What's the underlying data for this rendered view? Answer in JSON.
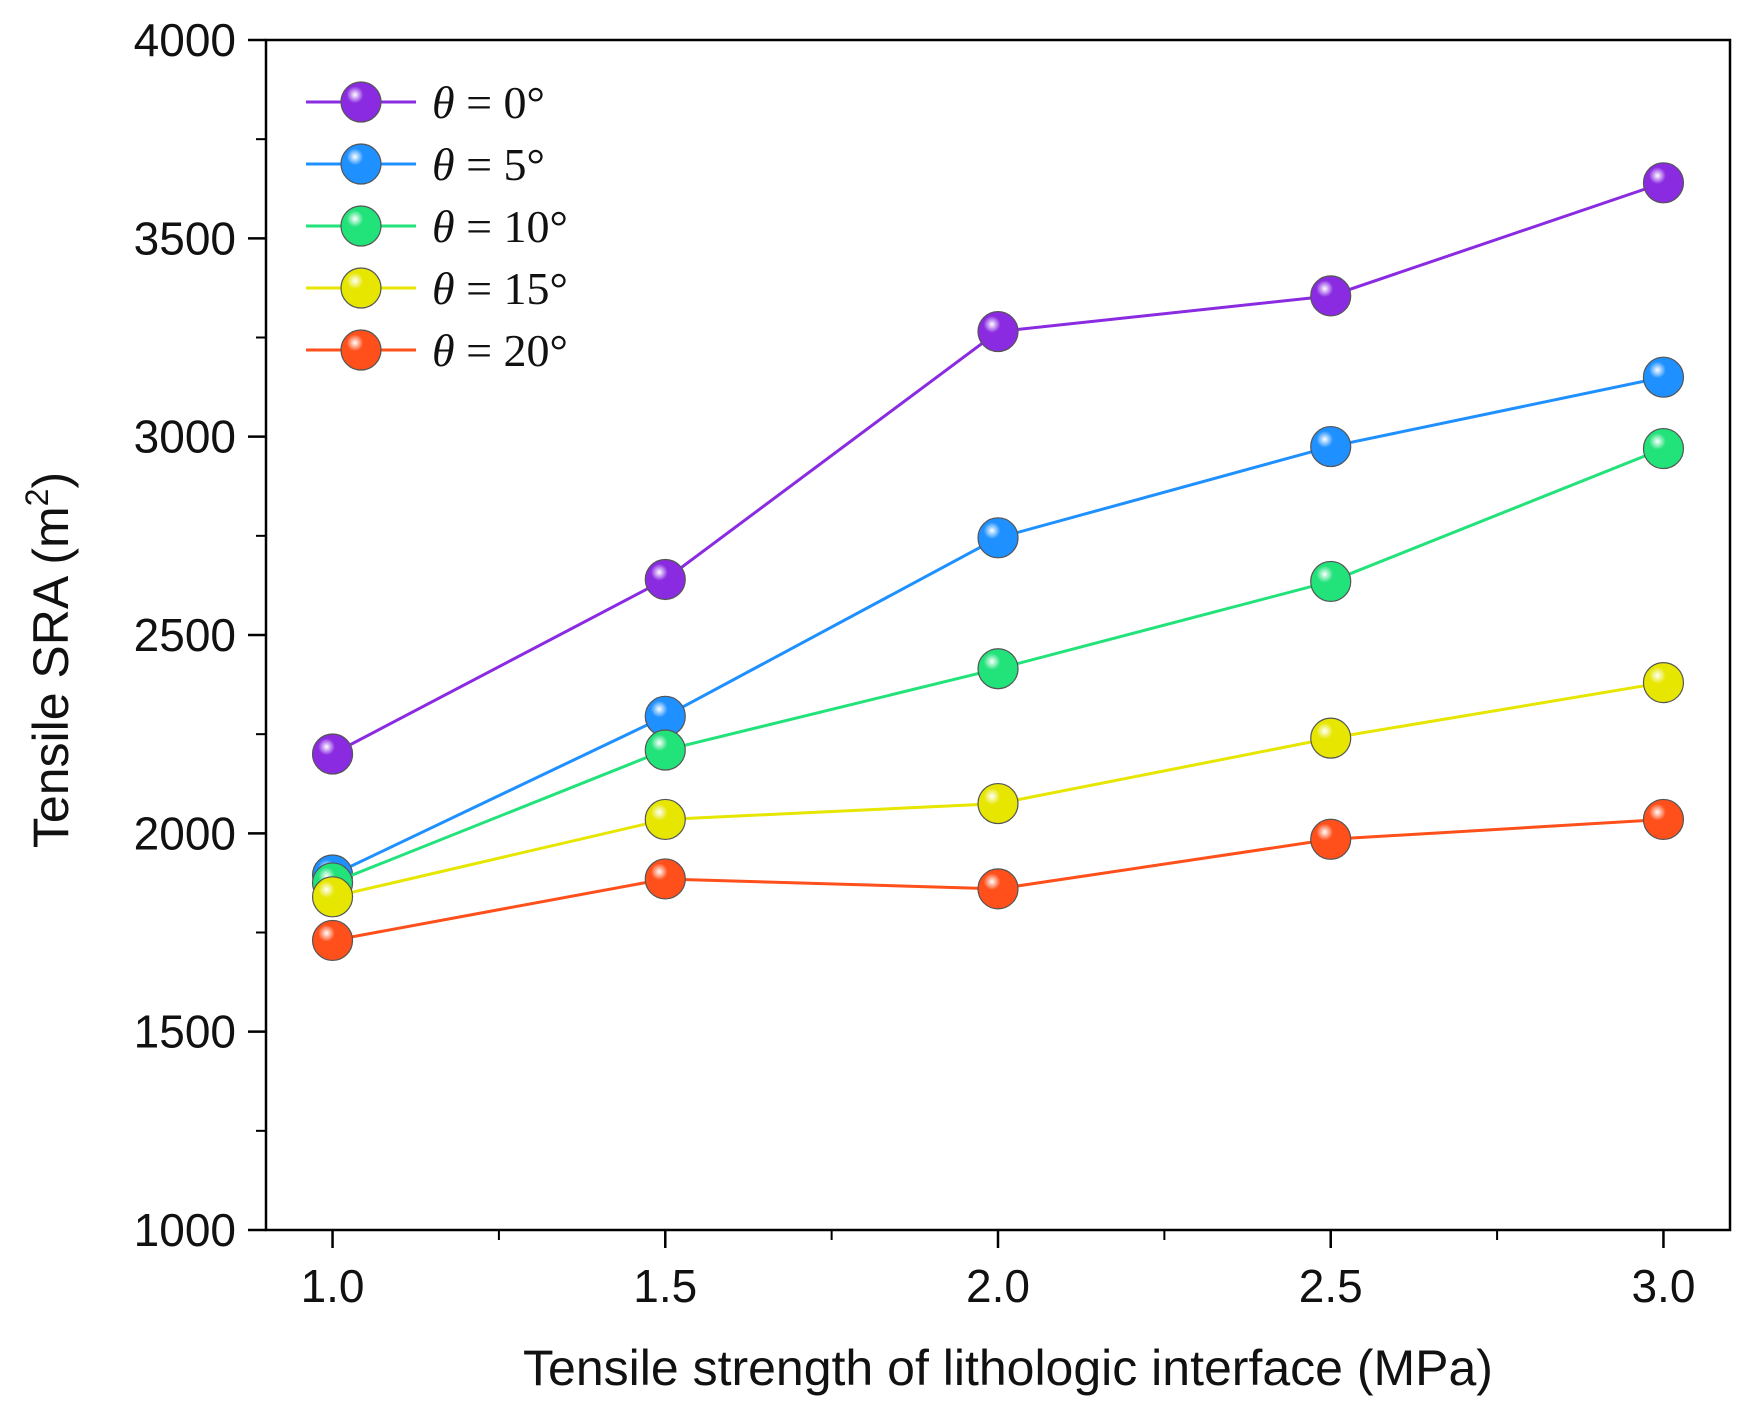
{
  "chart_data": {
    "type": "line",
    "title": "",
    "xlabel": "Tensile strength of lithologic interface (MPa)",
    "ylabel": "Tensile SRA (m",
    "ylabel_superscript": "2",
    "ylabel_suffix": ")",
    "xlim": [
      0.9,
      3.1
    ],
    "ylim": [
      1000,
      4000
    ],
    "x": [
      1.0,
      1.5,
      2.0,
      2.5,
      3.0
    ],
    "xticks": [
      1.0,
      1.5,
      2.0,
      2.5,
      3.0
    ],
    "xtick_labels": [
      "1.0",
      "1.5",
      "2.0",
      "2.5",
      "3.0"
    ],
    "xminor": [
      1.25,
      1.75,
      2.25,
      2.75
    ],
    "yticks": [
      1000,
      1500,
      2000,
      2500,
      3000,
      3500,
      4000
    ],
    "ytick_labels": [
      "1000",
      "1500",
      "2000",
      "2500",
      "3000",
      "3500",
      "4000"
    ],
    "yminor": [
      1250,
      1750,
      2250,
      2750,
      3250,
      3750
    ],
    "grid": false,
    "legend_position": "top-left",
    "series": [
      {
        "name": "θ = 0°",
        "symbol": "θ",
        "rest": " = 0°",
        "color": "#8a2be2",
        "values": [
          2200,
          2640,
          3265,
          3355,
          3640
        ]
      },
      {
        "name": "θ = 5°",
        "symbol": "θ",
        "rest": " = 5°",
        "color": "#1e90ff",
        "values": [
          1895,
          2295,
          2745,
          2975,
          3150
        ]
      },
      {
        "name": "θ = 10°",
        "symbol": "θ",
        "rest": " = 10°",
        "color": "#22e27a",
        "values": [
          1875,
          2210,
          2415,
          2635,
          2970
        ]
      },
      {
        "name": "θ = 15°",
        "symbol": "θ",
        "rest": " = 15°",
        "color": "#e6e600",
        "values": [
          1840,
          2035,
          2075,
          2240,
          2380
        ]
      },
      {
        "name": "θ = 20°",
        "symbol": "θ",
        "rest": " = 20°",
        "color": "#ff4f1a",
        "values": [
          1730,
          1885,
          1860,
          1985,
          2035
        ]
      }
    ]
  }
}
